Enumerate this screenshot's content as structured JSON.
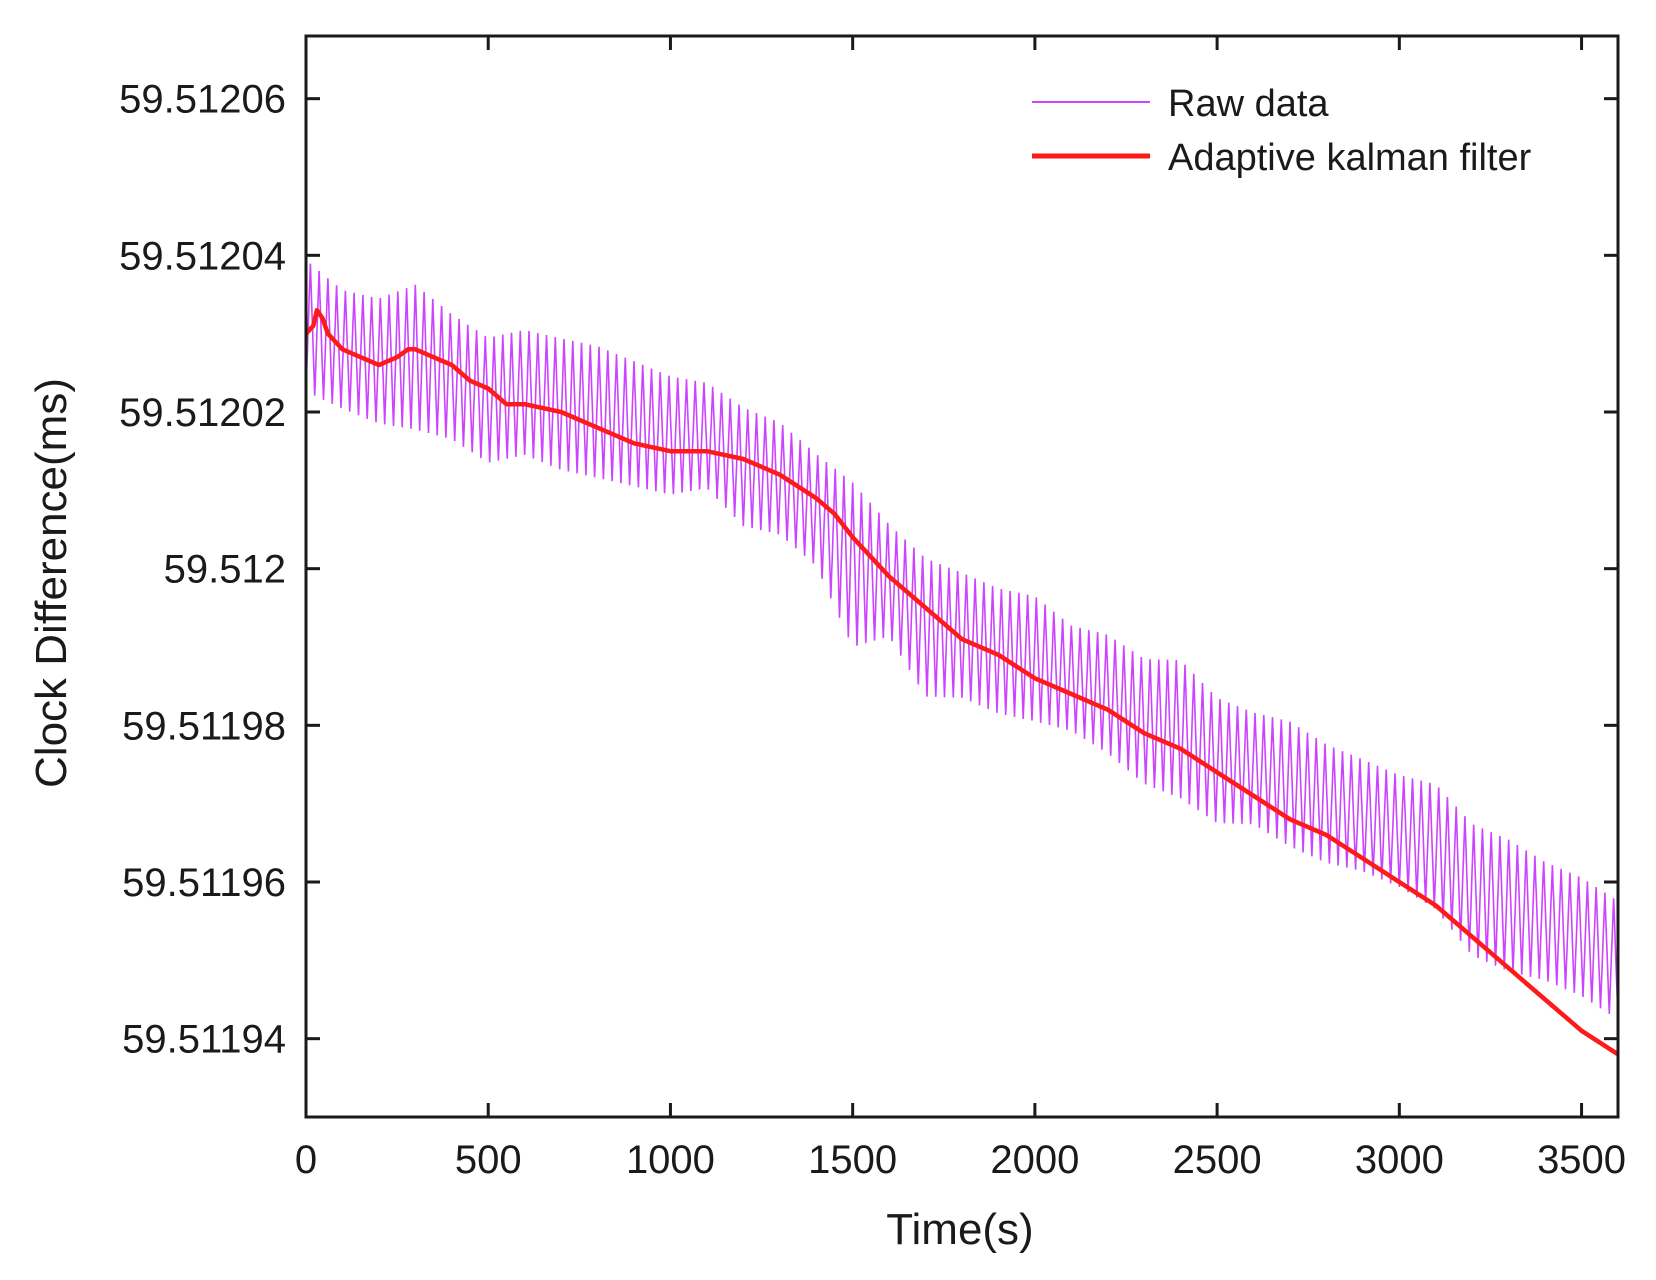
{
  "chart_data": {
    "type": "line",
    "title": "",
    "xlabel": "Time(s)",
    "ylabel": "Clock Difference(ms)",
    "xlim": [
      0,
      3600
    ],
    "ylim": [
      59.51193,
      59.512068
    ],
    "xticks": [
      0,
      500,
      1000,
      1500,
      2000,
      2500,
      3000,
      3500
    ],
    "xtick_labels": [
      "0",
      "500",
      "1000",
      "1500",
      "2000",
      "2500",
      "3000",
      "3500"
    ],
    "yticks": [
      59.51194,
      59.51196,
      59.51198,
      59.512,
      59.51202,
      59.51204,
      59.51206
    ],
    "ytick_labels": [
      "59.51194",
      "59.51196",
      "59.51198",
      "59.512",
      "59.51202",
      "59.51204",
      "59.51206"
    ],
    "legend_position": "top-right",
    "series": [
      {
        "name": "Raw data",
        "color": "#cc44ff",
        "style": "thin oscillating band",
        "x": [
          0,
          100,
          200,
          300,
          400,
          500,
          600,
          700,
          800,
          900,
          1000,
          1100,
          1200,
          1300,
          1400,
          1500,
          1600,
          1700,
          1800,
          1900,
          2000,
          2100,
          2200,
          2300,
          2400,
          2500,
          2600,
          2700,
          2800,
          2900,
          3000,
          3100,
          3200,
          3300,
          3400,
          3500,
          3600
        ],
        "upper": [
          59.512041,
          59.512037,
          59.512036,
          59.512038,
          59.512034,
          59.512031,
          59.512032,
          59.512031,
          59.51203,
          59.512028,
          59.512026,
          59.512025,
          59.512022,
          59.51202,
          59.512016,
          59.512013,
          59.512007,
          59.512003,
          59.512001,
          59.511999,
          59.511998,
          59.511994,
          59.511993,
          59.51199,
          59.51199,
          59.511985,
          59.511983,
          59.511982,
          59.511979,
          59.511977,
          59.511975,
          59.511974,
          59.511969,
          59.511967,
          59.511964,
          59.511962,
          59.511959
        ],
        "lower": [
          59.512021,
          59.512019,
          59.512017,
          59.512016,
          59.512015,
          59.512012,
          59.512013,
          59.512011,
          59.51201,
          59.512009,
          59.512008,
          59.512009,
          59.512004,
          59.512003,
          59.511999,
          59.511988,
          59.51199,
          59.511982,
          59.511982,
          59.51198,
          59.511979,
          59.511978,
          59.511975,
          59.511971,
          59.511969,
          59.511966,
          59.511966,
          59.511963,
          59.511961,
          59.51196,
          59.511958,
          59.511955,
          59.511949,
          59.511947,
          59.511946,
          59.511944,
          59.511941
        ]
      },
      {
        "name": "Adaptive kalman filter",
        "color": "#ff1a1a",
        "x": [
          0,
          20,
          30,
          45,
          60,
          80,
          100,
          150,
          200,
          250,
          280,
          300,
          350,
          400,
          450,
          500,
          550,
          600,
          700,
          800,
          900,
          1000,
          1100,
          1200,
          1300,
          1400,
          1450,
          1500,
          1600,
          1700,
          1800,
          1900,
          2000,
          2100,
          2200,
          2300,
          2400,
          2500,
          2600,
          2700,
          2800,
          2900,
          3000,
          3100,
          3200,
          3300,
          3400,
          3500,
          3600
        ],
        "y": [
          59.51203,
          59.512031,
          59.512033,
          59.512032,
          59.51203,
          59.512029,
          59.512028,
          59.512027,
          59.512026,
          59.512027,
          59.512028,
          59.512028,
          59.512027,
          59.512026,
          59.512024,
          59.512023,
          59.512021,
          59.512021,
          59.51202,
          59.512018,
          59.512016,
          59.512015,
          59.512015,
          59.512014,
          59.512012,
          59.512009,
          59.512007,
          59.512004,
          59.511999,
          59.511995,
          59.511991,
          59.511989,
          59.511986,
          59.511984,
          59.511982,
          59.511979,
          59.511977,
          59.511974,
          59.511971,
          59.511968,
          59.511966,
          59.511963,
          59.51196,
          59.511957,
          59.511953,
          59.511949,
          59.511945,
          59.511941,
          59.511938
        ]
      }
    ]
  }
}
